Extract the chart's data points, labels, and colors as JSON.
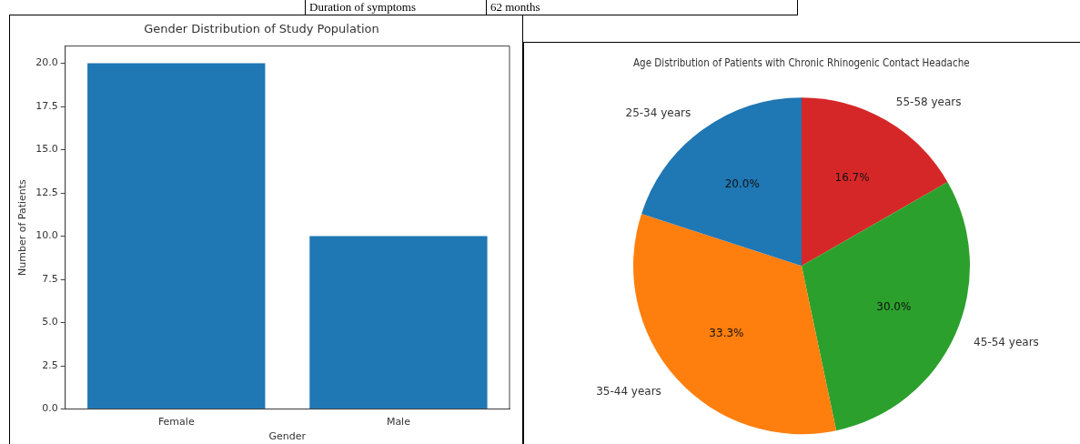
{
  "chart_data": [
    {
      "type": "other",
      "annotations": [
        "Duration of symptoms",
        "62 months"
      ]
    },
    {
      "type": "bar",
      "title": "Gender Distribution of Study Population",
      "xlabel": "Gender",
      "ylabel": "Number of Patients",
      "categories": [
        "Female",
        "Male"
      ],
      "values": [
        20,
        10
      ],
      "color": "#1f77b4",
      "ylim": [
        0,
        21
      ],
      "yticks": [
        {
          "value": 0,
          "label": "0.0"
        },
        {
          "value": 2.5,
          "label": "2.5"
        },
        {
          "value": 5,
          "label": "5.0"
        },
        {
          "value": 7.5,
          "label": "7.5"
        },
        {
          "value": 10,
          "label": "10.0"
        },
        {
          "value": 12.5,
          "label": "12.5"
        },
        {
          "value": 15,
          "label": "15.0"
        },
        {
          "value": 17.5,
          "label": "17.5"
        },
        {
          "value": 20,
          "label": "20.0"
        }
      ],
      "grid": false,
      "legend": false
    },
    {
      "type": "pie",
      "title": "Age Distribution of Patients with Chronic Rhinogenic Contact Headache",
      "categories": [
        "55-58 years",
        "45-54 years",
        "35-44 years",
        "25-34 years"
      ],
      "values": [
        16.7,
        30,
        33.3,
        20
      ],
      "colors": [
        "#d62728",
        "#2ca02c",
        "#ff7f0e",
        "#1f77b4"
      ],
      "value_labels": [
        "16.7%",
        "30.0%",
        "33.3%",
        "20.0%"
      ],
      "legend": false
    }
  ]
}
